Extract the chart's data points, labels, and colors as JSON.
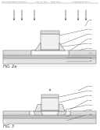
{
  "bg_color": "#ffffff",
  "lc": "#666666",
  "lc_dark": "#333333",
  "lc_thin": "#999999",
  "hatch_gray": "#bbbbbb",
  "fill_white": "#ffffff",
  "fill_vlight": "#f5f5f5",
  "fill_light": "#eeeeee",
  "fill_mid": "#e0e0e0",
  "fill_gray": "#d8d8d8",
  "fill_dgray": "#cccccc",
  "fill_hatch": "#c8c8c8",
  "fig2a_label": "FIG. 2a",
  "fig3_label": "FIG. 3"
}
